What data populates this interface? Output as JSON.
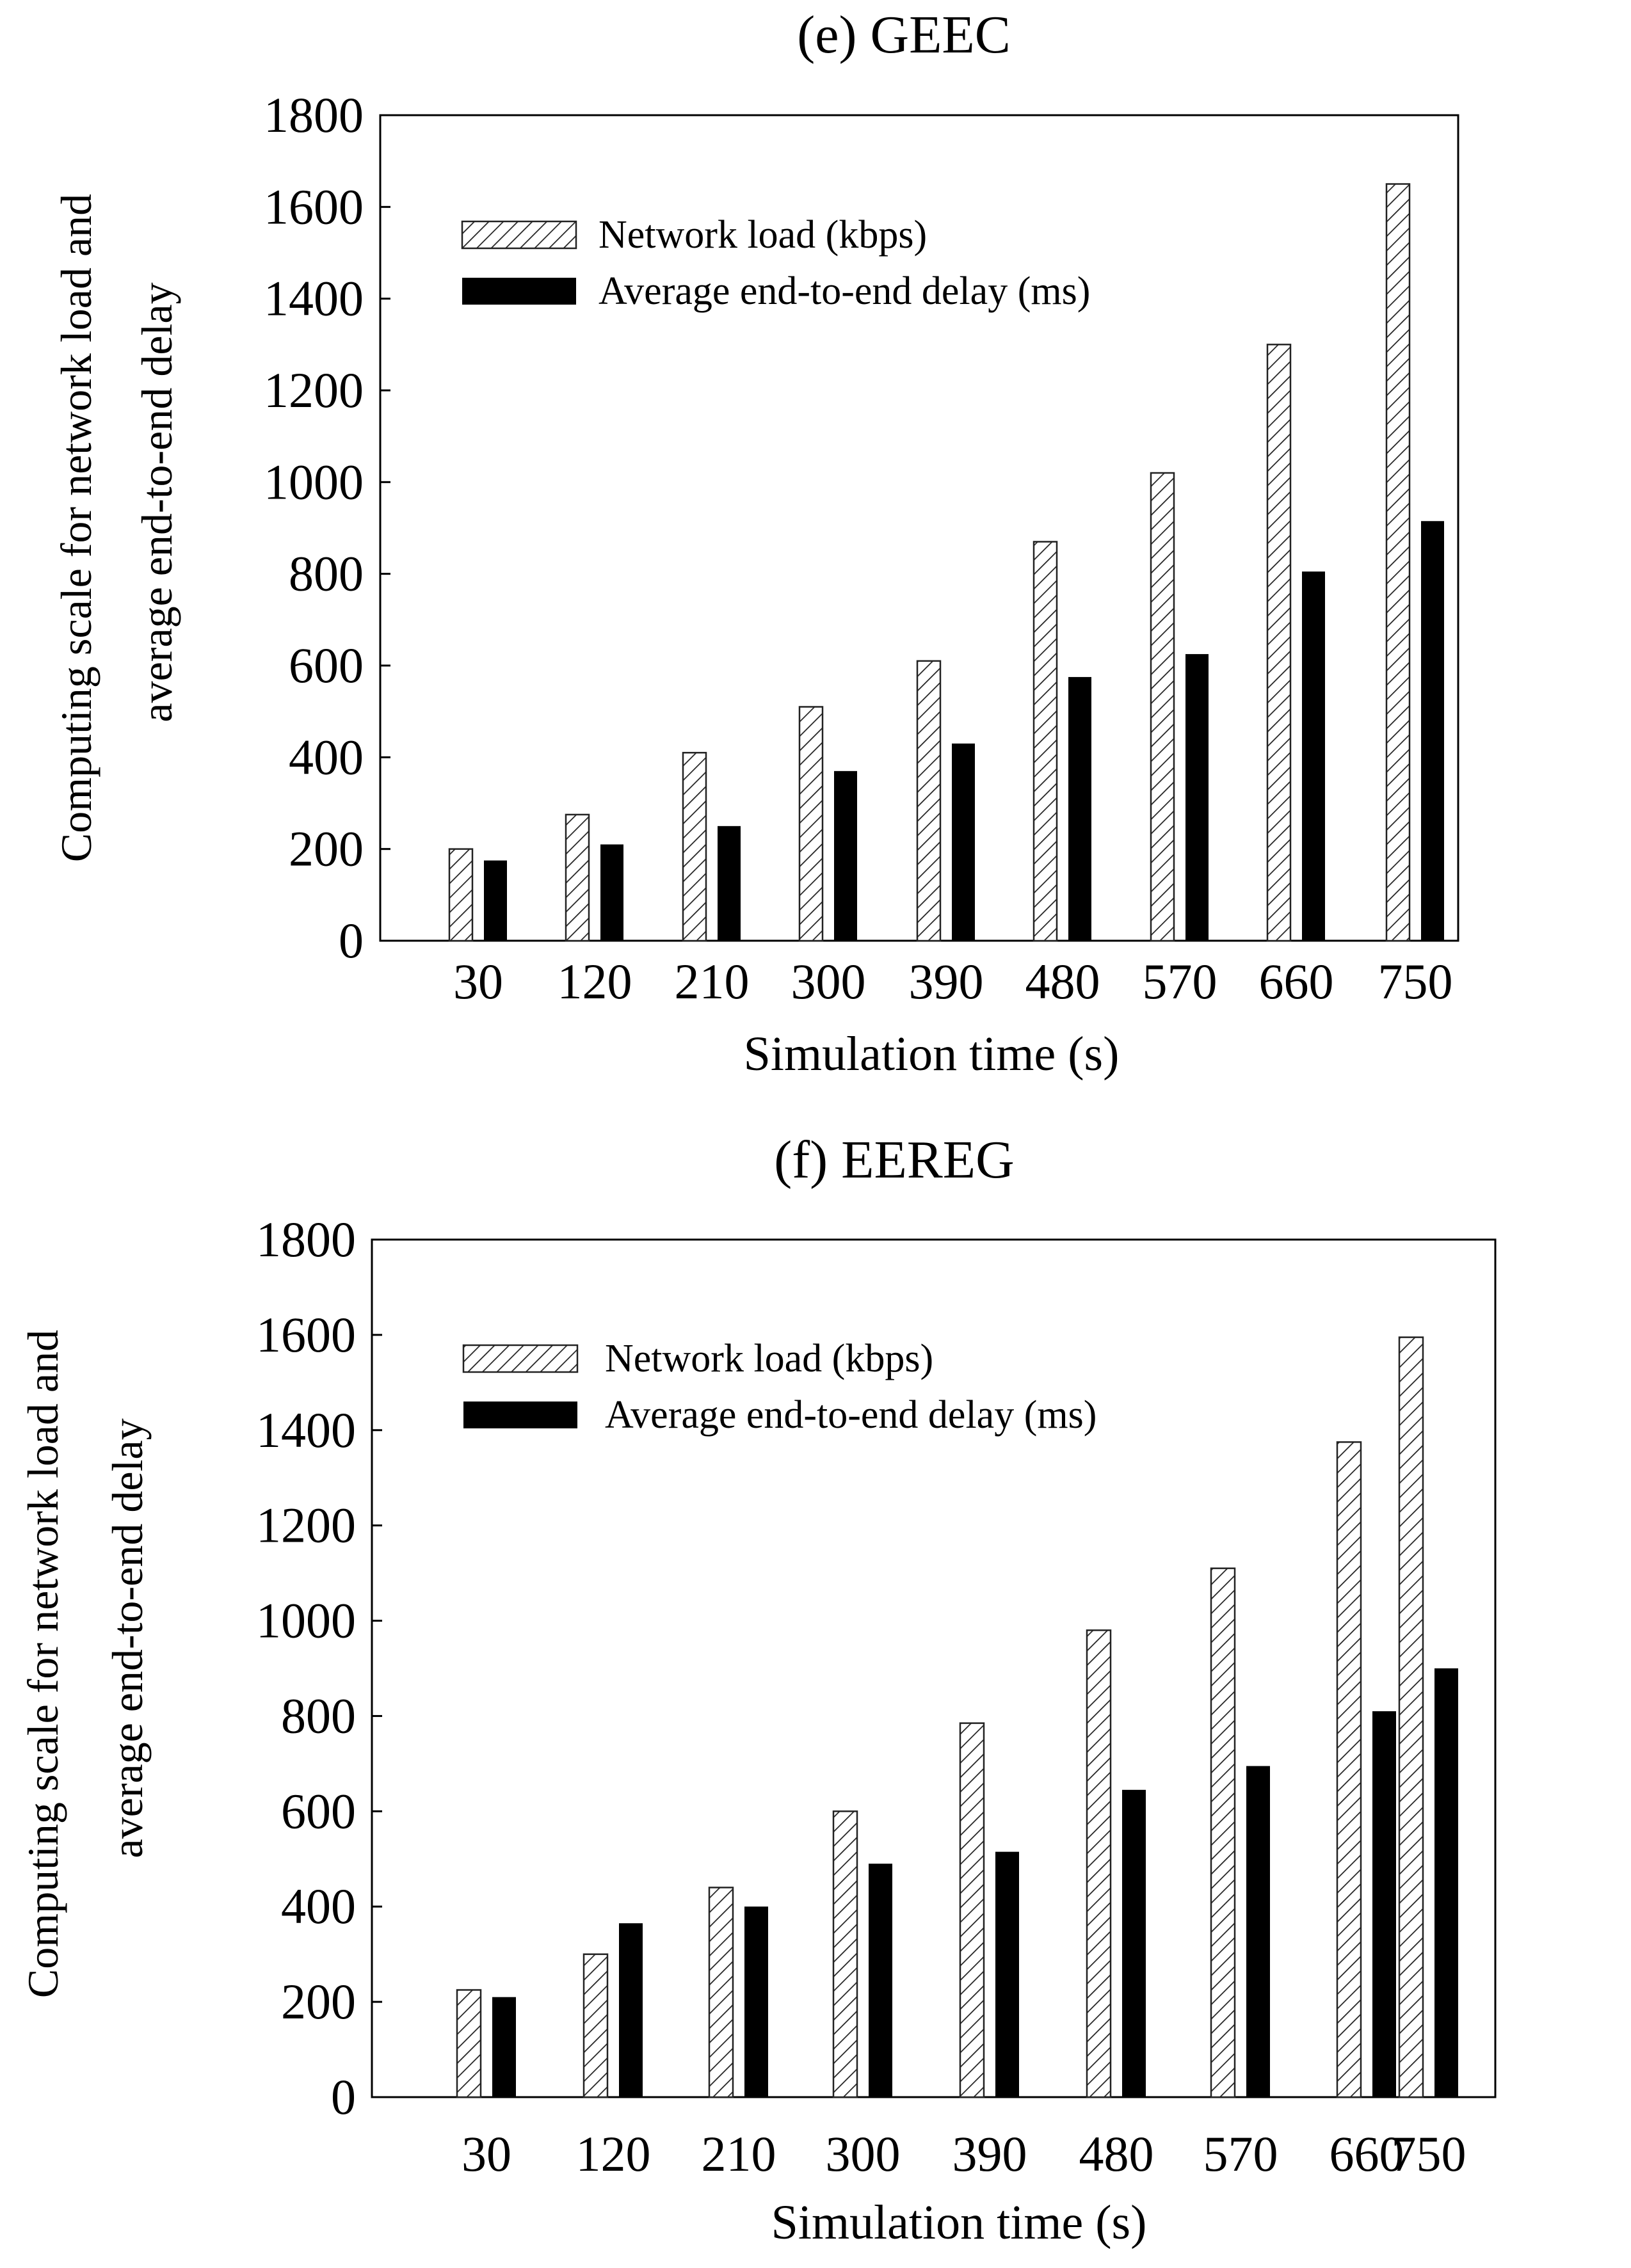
{
  "chart_data": [
    {
      "type": "bar",
      "title": "(e) GEEC",
      "xlabel": "Simulation time (s)",
      "ylabel_lines": [
        "Computing scale for network load and",
        "average end-to-end delay"
      ],
      "categories": [
        "30",
        "120",
        "210",
        "300",
        "390",
        "480",
        "570",
        "660",
        "750"
      ],
      "series": [
        {
          "name": "Network load (kbps)",
          "pattern": "hatched",
          "values": [
            200,
            275,
            410,
            510,
            610,
            870,
            1020,
            1300,
            1650
          ]
        },
        {
          "name": "Average end-to-end delay (ms)",
          "pattern": "solid",
          "values": [
            175,
            210,
            250,
            370,
            430,
            575,
            625,
            805,
            915
          ]
        }
      ],
      "ylim": [
        0,
        1800
      ],
      "yticks": [
        "0",
        "200",
        "400",
        "600",
        "800",
        "1000",
        "1200",
        "1400",
        "1600",
        "1800"
      ],
      "grid": false,
      "legend_position": "top-left"
    },
    {
      "type": "bar",
      "title": "(f) EEREG",
      "xlabel": "Simulation time (s)",
      "ylabel_lines": [
        "Computing scale for network load and",
        "average end-to-end delay"
      ],
      "categories": [
        "30",
        "120",
        "210",
        "300",
        "390",
        "480",
        "570",
        "660",
        "750"
      ],
      "series": [
        {
          "name": "Network load (kbps)",
          "pattern": "hatched",
          "values": [
            225,
            300,
            440,
            600,
            785,
            980,
            1110,
            1375,
            1595
          ]
        },
        {
          "name": "Average end-to-end delay (ms)",
          "pattern": "solid",
          "values": [
            210,
            365,
            400,
            490,
            515,
            645,
            695,
            810,
            900
          ]
        }
      ],
      "ylim": [
        0,
        1800
      ],
      "yticks": [
        "0",
        "200",
        "400",
        "600",
        "800",
        "1000",
        "1200",
        "1400",
        "1600",
        "1800"
      ],
      "grid": false,
      "legend_position": "top-left"
    }
  ],
  "colors": {
    "bar_solid": "#000000",
    "hatch_stroke": "#222222",
    "hatch_fill": "#ffffff"
  }
}
